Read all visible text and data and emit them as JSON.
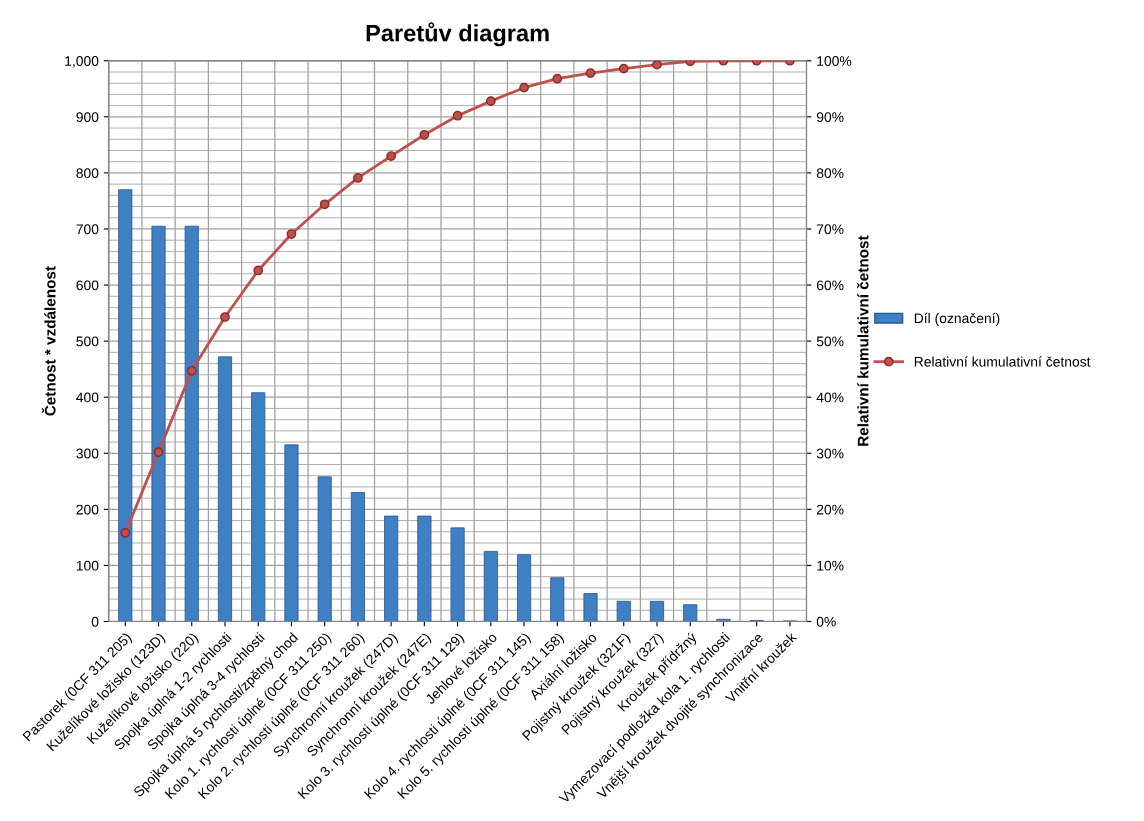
{
  "chart_data": {
    "type": "bar",
    "title": "Paretův diagram",
    "ylabel": "Četnost * vzdálenost",
    "y2label": "Relativní kumulativní četnost",
    "categories": [
      "Pastorek (0CF 311 205)",
      "Kuželíkové ložisko (123D)",
      "Kuželíkové ložisko (220)",
      "Spojka úplná 1-2 rychlosti",
      "Spojka úplná 3-4 rychlosti",
      "Spojka úplná 5 rychlosti/zpětný chod",
      "Kolo 1. rychlosti úplné (0CF 311 250)",
      "Kolo 2. rychlosti úplné (0CF 311 260)",
      "Synchronní kroužek (247D)",
      "Synchronní kroužek (247E)",
      "Kolo 3. rychlosti úplné (0CF 311 129)",
      "Jehlové ložisko",
      "Kolo 4. rychlosti úplné (0CF 311 145)",
      "Kolo 5. rychlosti úplné (0CF 311 158)",
      "Axiální ložisko",
      "Pojistný kroužek (321F)",
      "Pojistný kroužek (327)",
      "Kroužek přídržný",
      "Vymezovací podložka kola 1. rychlosti",
      "Vnější kroužek dvojité synchronizace",
      "Vnitřní kroužek"
    ],
    "series": [
      {
        "name": "Díl (označení)",
        "color": "#3f7fc4",
        "values": [
          770,
          705,
          705,
          472,
          408,
          315,
          258,
          230,
          188,
          188,
          167,
          125,
          119,
          78,
          50,
          36,
          36,
          30,
          4,
          2,
          1
        ]
      },
      {
        "name": "Relativní kumulativní četnost",
        "type": "line",
        "axis": "y2",
        "color": "#c0504d",
        "marker": "circle",
        "values": [
          0.158,
          0.302,
          0.447,
          0.543,
          0.626,
          0.691,
          0.744,
          0.791,
          0.83,
          0.868,
          0.902,
          0.928,
          0.952,
          0.968,
          0.978,
          0.986,
          0.993,
          0.999,
          1.0,
          1.0,
          1.0
        ]
      }
    ],
    "ylim": [
      0,
      1000
    ],
    "yticks": [
      0,
      100,
      200,
      300,
      400,
      500,
      600,
      700,
      800,
      900,
      {
        "value": 1000,
        "label": "1,000"
      }
    ],
    "y2lim": [
      0,
      1
    ],
    "y2ticks": [
      {
        "value": 0,
        "label": "0%"
      },
      {
        "value": 0.1,
        "label": "10%"
      },
      {
        "value": 0.2,
        "label": "20%"
      },
      {
        "value": 0.3,
        "label": "30%"
      },
      {
        "value": 0.4,
        "label": "40%"
      },
      {
        "value": 0.5,
        "label": "50%"
      },
      {
        "value": 0.6,
        "label": "60%"
      },
      {
        "value": 0.7,
        "label": "70%"
      },
      {
        "value": 0.8,
        "label": "80%"
      },
      {
        "value": 0.9,
        "label": "90%"
      },
      {
        "value": 1,
        "label": "100%"
      }
    ],
    "grid": true,
    "legend": "right"
  }
}
